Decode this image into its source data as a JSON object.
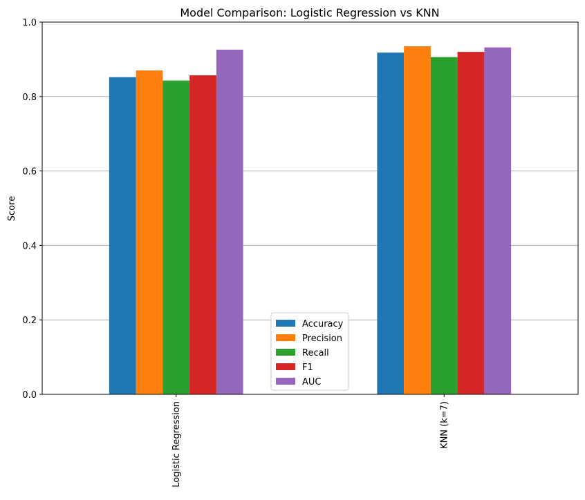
{
  "chart_data": {
    "type": "bar",
    "title": "Model Comparison: Logistic Regression vs KNN",
    "xlabel": "",
    "ylabel": "Score",
    "categories": [
      "Logistic Regression",
      "KNN (k=7)"
    ],
    "series": [
      {
        "name": "Accuracy",
        "color": "#1f77b4",
        "values": [
          0.852,
          0.918
        ]
      },
      {
        "name": "Precision",
        "color": "#ff7f0e",
        "values": [
          0.87,
          0.935
        ]
      },
      {
        "name": "Recall",
        "color": "#2ca02c",
        "values": [
          0.843,
          0.906
        ]
      },
      {
        "name": "F1",
        "color": "#d62728",
        "values": [
          0.857,
          0.92
        ]
      },
      {
        "name": "AUC",
        "color": "#9467bd",
        "values": [
          0.926,
          0.932
        ]
      }
    ],
    "ylim": [
      0,
      1.0
    ],
    "yticks": [
      "0.0",
      "0.2",
      "0.4",
      "0.6",
      "0.8",
      "1.0"
    ],
    "grid": "y",
    "legend_position": "lower-center"
  }
}
